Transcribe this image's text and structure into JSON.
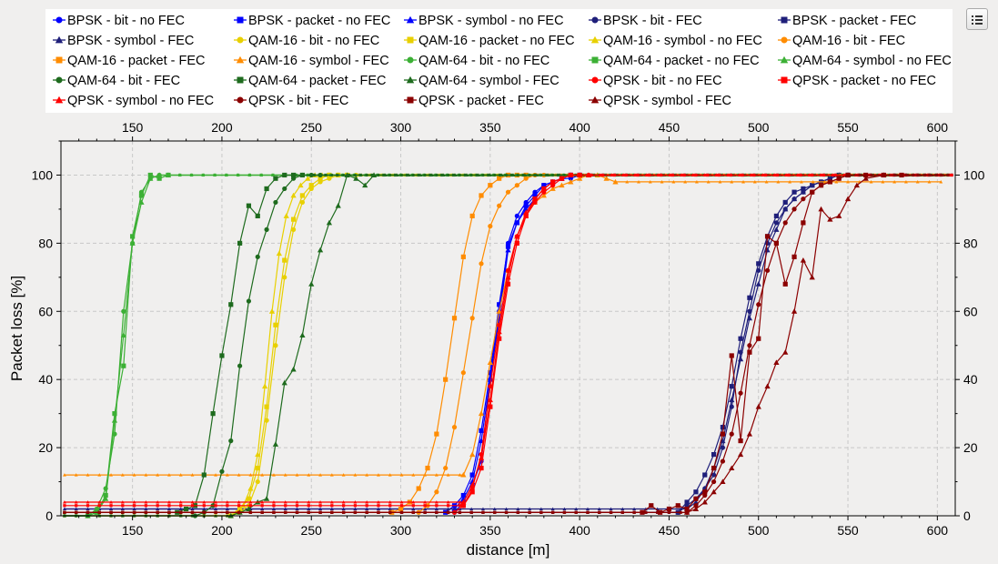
{
  "window": {
    "menu_icon": "list-menu-icon"
  },
  "chart_data": {
    "type": "line",
    "title": "",
    "xlabel": "distance [m]",
    "ylabel": "Packet loss [%]",
    "xlim": [
      110,
      610
    ],
    "ylim": [
      0,
      110
    ],
    "x_ticks": [
      150,
      200,
      250,
      300,
      350,
      400,
      450,
      500,
      550,
      600
    ],
    "y_ticks": [
      0,
      20,
      40,
      60,
      80,
      100
    ],
    "grid": true,
    "legend_position": "top",
    "series": [
      {
        "name": "BPSK - bit - no FEC",
        "color": "#0000ff",
        "marker": "circle",
        "x": [
          330,
          335,
          340,
          345,
          350,
          355,
          360,
          365,
          370,
          375,
          380,
          385,
          390,
          395,
          400
        ],
        "y": [
          1,
          4,
          9,
          16,
          40,
          60,
          80,
          88,
          92,
          95,
          97,
          98,
          99,
          99,
          100
        ]
      },
      {
        "name": "BPSK - packet - no FEC",
        "color": "#0000ff",
        "marker": "square",
        "x": [
          325,
          330,
          335,
          340,
          345,
          350,
          355,
          360,
          365,
          370,
          375,
          380,
          385,
          390,
          395,
          400
        ],
        "y": [
          1,
          3,
          6,
          12,
          25,
          42,
          62,
          79,
          86,
          91,
          94,
          97,
          98,
          99,
          100,
          100
        ]
      },
      {
        "name": "BPSK - symbol - no FEC",
        "color": "#0000ff",
        "marker": "triangle",
        "x": [
          330,
          335,
          340,
          345,
          350,
          355,
          360,
          365,
          370,
          375,
          380,
          385,
          390,
          395,
          400
        ],
        "y": [
          2,
          5,
          10,
          22,
          40,
          58,
          78,
          86,
          90,
          93,
          96,
          98,
          99,
          100,
          100
        ]
      },
      {
        "name": "BPSK - bit - FEC",
        "color": "#1f1f7a",
        "marker": "circle",
        "x": [
          455,
          460,
          465,
          470,
          475,
          480,
          485,
          490,
          495,
          500,
          505,
          510,
          515,
          520,
          525,
          530,
          535,
          540,
          545,
          550
        ],
        "y": [
          1,
          3,
          5,
          8,
          12,
          20,
          32,
          48,
          60,
          72,
          80,
          86,
          90,
          93,
          95,
          97,
          98,
          99,
          100,
          100
        ]
      },
      {
        "name": "BPSK - packet - FEC",
        "color": "#1f1f7a",
        "marker": "square",
        "x": [
          455,
          460,
          465,
          470,
          475,
          480,
          485,
          490,
          495,
          500,
          505,
          510,
          515,
          520,
          525,
          530,
          535,
          540,
          545,
          550
        ],
        "y": [
          1,
          4,
          7,
          12,
          18,
          26,
          38,
          52,
          64,
          74,
          82,
          88,
          92,
          95,
          96,
          97,
          98,
          99,
          100,
          100
        ]
      },
      {
        "name": "BPSK - symbol - FEC",
        "color": "#1f1f7a",
        "marker": "triangle",
        "x": [
          460,
          465,
          470,
          475,
          480,
          485,
          490,
          495,
          500,
          505,
          510,
          515,
          520,
          525,
          530,
          535,
          540,
          545,
          550
        ],
        "y": [
          2,
          4,
          8,
          14,
          22,
          34,
          46,
          58,
          68,
          78,
          84,
          90,
          93,
          95,
          97,
          98,
          99,
          100,
          100
        ]
      },
      {
        "name": "QAM-16 - bit - no FEC",
        "color": "#e8d000",
        "marker": "circle",
        "x": [
          205,
          210,
          215,
          220,
          225,
          230,
          235,
          240,
          245,
          250,
          255,
          260,
          265,
          270,
          275
        ],
        "y": [
          0,
          1,
          3,
          10,
          28,
          50,
          70,
          84,
          92,
          96,
          98,
          99,
          100,
          100,
          100
        ]
      },
      {
        "name": "QAM-16 - packet - no FEC",
        "color": "#e8d000",
        "marker": "square",
        "x": [
          205,
          210,
          215,
          220,
          225,
          230,
          235,
          240,
          245,
          250,
          255,
          260,
          265,
          270
        ],
        "y": [
          0,
          2,
          5,
          14,
          32,
          56,
          75,
          87,
          94,
          97,
          99,
          100,
          100,
          100
        ]
      },
      {
        "name": "QAM-16 - symbol - no FEC",
        "color": "#e8d000",
        "marker": "triangle",
        "x": [
          208,
          212,
          216,
          220,
          224,
          228,
          232,
          236,
          240,
          244,
          248,
          252,
          256,
          260,
          265
        ],
        "y": [
          1,
          3,
          8,
          18,
          38,
          60,
          77,
          88,
          94,
          97,
          99,
          100,
          100,
          100,
          100
        ]
      },
      {
        "name": "QAM-16 - bit - FEC",
        "color": "#ff8c00",
        "marker": "circle",
        "x": [
          310,
          315,
          320,
          325,
          330,
          335,
          340,
          345,
          350,
          355,
          360,
          365,
          370,
          375,
          380
        ],
        "y": [
          1,
          3,
          7,
          14,
          26,
          42,
          58,
          74,
          85,
          91,
          95,
          97,
          99,
          100,
          100
        ]
      },
      {
        "name": "QAM-16 - packet - FEC",
        "color": "#ff8c00",
        "marker": "square",
        "x": [
          295,
          300,
          305,
          310,
          315,
          320,
          325,
          330,
          335,
          340,
          345,
          350,
          355,
          360,
          365,
          370
        ],
        "y": [
          1,
          2,
          4,
          8,
          14,
          24,
          40,
          58,
          76,
          88,
          94,
          97,
          99,
          100,
          100,
          100
        ]
      },
      {
        "name": "QAM-16 - symbol - FEC",
        "color": "#ff8c00",
        "marker": "triangle",
        "x": [
          335,
          340,
          345,
          350,
          355,
          360,
          365,
          370,
          375,
          380,
          385,
          390,
          395,
          400,
          405,
          410,
          415,
          420
        ],
        "y": [
          12,
          18,
          30,
          45,
          60,
          72,
          82,
          88,
          92,
          94,
          96,
          97,
          98,
          99,
          100,
          100,
          99,
          98
        ]
      },
      {
        "name": "QAM-64 - bit - no FEC",
        "color": "#3cb035",
        "marker": "circle",
        "x": [
          125,
          130,
          135,
          140,
          145,
          150,
          155,
          160,
          165,
          170
        ],
        "y": [
          0,
          2,
          8,
          24,
          60,
          80,
          95,
          99,
          100,
          100
        ]
      },
      {
        "name": "QAM-64 - packet - no FEC",
        "color": "#3cb035",
        "marker": "square",
        "x": [
          125,
          130,
          135,
          140,
          145,
          150,
          155,
          160,
          165,
          170
        ],
        "y": [
          0,
          1,
          6,
          30,
          44,
          82,
          94,
          100,
          99,
          100
        ]
      },
      {
        "name": "QAM-64 - symbol - no FEC",
        "color": "#3cb035",
        "marker": "triangle",
        "x": [
          125,
          130,
          135,
          140,
          145,
          150,
          155,
          160,
          165,
          170
        ],
        "y": [
          0,
          1,
          5,
          28,
          53,
          80,
          92,
          99,
          100,
          100
        ]
      },
      {
        "name": "QAM-64 - bit - FEC",
        "color": "#1e6b1e",
        "marker": "circle",
        "x": [
          185,
          190,
          195,
          200,
          205,
          210,
          215,
          220,
          225,
          230,
          235,
          240,
          245,
          250,
          255
        ],
        "y": [
          0,
          1,
          3,
          13,
          22,
          44,
          63,
          76,
          84,
          92,
          96,
          99,
          100,
          100,
          100
        ]
      },
      {
        "name": "QAM-64 - packet - FEC",
        "color": "#1e6b1e",
        "marker": "square",
        "x": [
          175,
          180,
          185,
          190,
          195,
          200,
          205,
          210,
          215,
          220,
          225,
          230,
          235,
          240,
          245
        ],
        "y": [
          1,
          2,
          3,
          12,
          30,
          47,
          62,
          80,
          91,
          88,
          96,
          99,
          100,
          100,
          100
        ]
      },
      {
        "name": "QAM-64 - symbol - FEC",
        "color": "#1e6b1e",
        "marker": "triangle",
        "x": [
          205,
          210,
          215,
          220,
          225,
          230,
          235,
          240,
          245,
          250,
          255,
          260,
          265,
          270,
          275,
          280,
          285
        ],
        "y": [
          0,
          1,
          2,
          4,
          5,
          21,
          39,
          43,
          53,
          68,
          78,
          86,
          91,
          100,
          99,
          97,
          100
        ]
      },
      {
        "name": "QPSK - bit - no FEC",
        "color": "#ff0000",
        "marker": "circle",
        "x": [
          330,
          335,
          340,
          345,
          350,
          355,
          360,
          365,
          370,
          375,
          380,
          385,
          390,
          395,
          400,
          405
        ],
        "y": [
          1,
          3,
          8,
          18,
          38,
          56,
          72,
          82,
          88,
          92,
          95,
          97,
          99,
          100,
          100,
          100
        ]
      },
      {
        "name": "QPSK - packet - no FEC",
        "color": "#ff0000",
        "marker": "square",
        "x": [
          335,
          340,
          345,
          350,
          355,
          360,
          365,
          370,
          375,
          380,
          385,
          390,
          395,
          400
        ],
        "y": [
          3,
          7,
          14,
          32,
          52,
          68,
          80,
          88,
          93,
          96,
          98,
          99,
          100,
          100
        ]
      },
      {
        "name": "QPSK - symbol - no FEC",
        "color": "#ff0000",
        "marker": "triangle",
        "x": [
          335,
          340,
          345,
          350,
          355,
          360,
          365,
          370,
          375,
          380,
          385,
          390,
          395,
          400,
          405
        ],
        "y": [
          4,
          9,
          17,
          34,
          54,
          70,
          82,
          89,
          93,
          96,
          98,
          99,
          100,
          100,
          100
        ]
      },
      {
        "name": "QPSK - bit - FEC",
        "color": "#8b0000",
        "marker": "circle",
        "x": [
          460,
          465,
          470,
          475,
          480,
          485,
          490,
          495,
          500,
          505,
          510,
          515,
          520,
          525,
          530,
          535,
          540,
          545,
          550
        ],
        "y": [
          1,
          3,
          6,
          10,
          16,
          24,
          36,
          50,
          62,
          72,
          80,
          86,
          90,
          93,
          95,
          97,
          98,
          99,
          100
        ]
      },
      {
        "name": "QPSK - packet - FEC",
        "color": "#8b0000",
        "marker": "square",
        "x": [
          435,
          440,
          445,
          450,
          455,
          460,
          465,
          470,
          475,
          480,
          485,
          490,
          495,
          500,
          505,
          510,
          515,
          520,
          525,
          530,
          535,
          540,
          545,
          550,
          560,
          570,
          580
        ],
        "y": [
          1,
          3,
          1,
          2,
          3,
          2,
          5,
          7,
          14,
          24,
          47,
          22,
          48,
          52,
          82,
          80,
          68,
          76,
          86,
          95,
          97,
          98,
          99,
          100,
          100,
          100,
          100
        ]
      },
      {
        "name": "QPSK - symbol - FEC",
        "color": "#8b0000",
        "marker": "triangle",
        "x": [
          460,
          465,
          470,
          475,
          480,
          485,
          490,
          495,
          500,
          505,
          510,
          515,
          520,
          525,
          530,
          535,
          540,
          545,
          550,
          555,
          560,
          570
        ],
        "y": [
          1,
          2,
          4,
          7,
          10,
          14,
          18,
          24,
          32,
          38,
          45,
          48,
          60,
          75,
          70,
          90,
          87,
          88,
          93,
          97,
          99,
          100
        ]
      }
    ]
  }
}
